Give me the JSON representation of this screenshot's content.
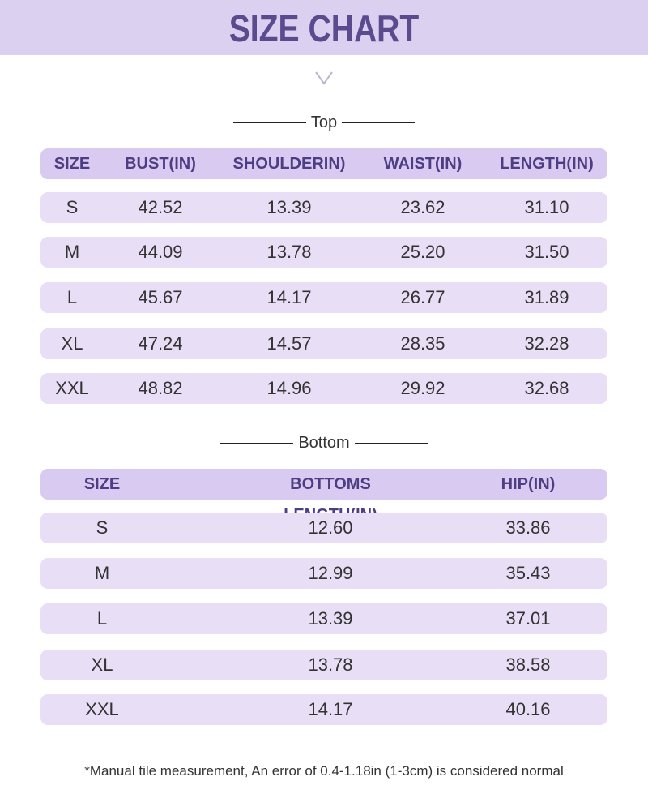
{
  "header": {
    "title": "SIZE CHART"
  },
  "tables": [
    {
      "title": "Top",
      "columns": [
        "SIZE",
        "BUST(IN)",
        "SHOULDERIN)",
        "WAIST(IN)",
        "LENGTH(IN)"
      ],
      "rows": [
        [
          "S",
          "42.52",
          "13.39",
          "23.62",
          "31.10"
        ],
        [
          "M",
          "44.09",
          "13.78",
          "25.20",
          "31.50"
        ],
        [
          "L",
          "45.67",
          "14.17",
          "26.77",
          "31.89"
        ],
        [
          "XL",
          "47.24",
          "14.57",
          "28.35",
          "32.28"
        ],
        [
          "XXL",
          "48.82",
          "14.96",
          "29.92",
          "32.68"
        ]
      ]
    },
    {
      "title": "Bottom",
      "columns": [
        "SIZE",
        "BOTTOMS LENGTH(IN)",
        "HIP(IN)"
      ],
      "rows": [
        [
          "S",
          "12.60",
          "33.86"
        ],
        [
          "M",
          "12.99",
          "35.43"
        ],
        [
          "L",
          "13.39",
          "37.01"
        ],
        [
          "XL",
          "13.78",
          "38.58"
        ],
        [
          "XXL",
          "14.17",
          "40.16"
        ]
      ]
    }
  ],
  "footnote": "*Manual tile measurement, An error of 0.4-1.18in (1-3cm) is considered normal"
}
